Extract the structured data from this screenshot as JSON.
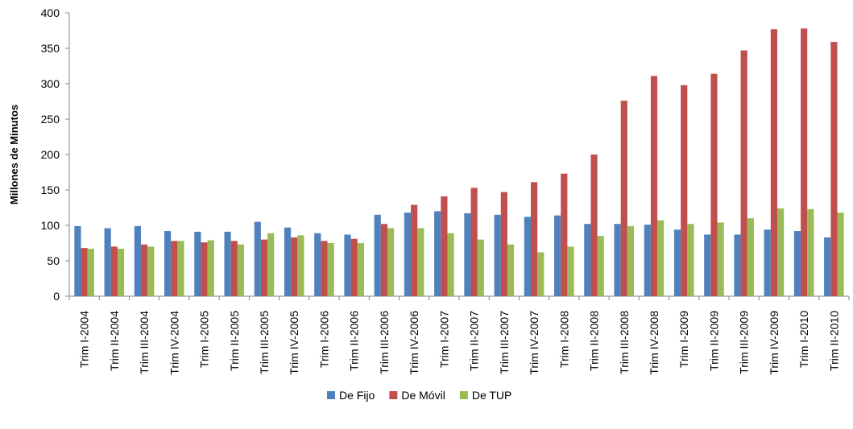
{
  "chart_data": {
    "type": "bar",
    "ylabel": "Millones de Minutos",
    "xlabel": "",
    "ylim": [
      0,
      400
    ],
    "yticks": [
      "0",
      "50",
      "100",
      "150",
      "200",
      "250",
      "300",
      "350",
      "400"
    ],
    "grid": false,
    "legend_position": "bottom",
    "categories": [
      "Trim I-2004",
      "Trim II-2004",
      "Trim III-2004",
      "Trim IV-2004",
      "Trim I-2005",
      "Trim II-2005",
      "Trim III-2005",
      "Trim IV-2005",
      "Trim I-2006",
      "Trim II-2006",
      "Trim III-2006",
      "Trim IV-2006",
      "Trim I-2007",
      "Trim II-2007",
      "Trim III-2007",
      "Trim IV-2007",
      "Trim I-2008",
      "Trim II-2008",
      "Trim III-2008",
      "Trim IV-2008",
      "Trim I-2009",
      "Trim II-2009",
      "Trim III-2009",
      "Trim IV-2009",
      "Trim I-2010",
      "Trim II-2010"
    ],
    "series": [
      {
        "name": "De Fijo",
        "color": "#4f81bd",
        "values": [
          99,
          96,
          99,
          92,
          91,
          91,
          105,
          97,
          89,
          87,
          115,
          118,
          120,
          117,
          115,
          112,
          114,
          102,
          102,
          101,
          94,
          87,
          87,
          94,
          92,
          83
        ]
      },
      {
        "name": "De Móvil",
        "color": "#c0504d",
        "values": [
          68,
          70,
          73,
          78,
          76,
          78,
          80,
          83,
          78,
          81,
          102,
          129,
          141,
          153,
          147,
          161,
          173,
          200,
          276,
          311,
          298,
          314,
          347,
          377,
          378,
          359
        ]
      },
      {
        "name": "De TUP",
        "color": "#9bbb59",
        "values": [
          67,
          67,
          70,
          78,
          79,
          73,
          89,
          86,
          75,
          75,
          96,
          96,
          89,
          80,
          73,
          62,
          70,
          85,
          99,
          107,
          102,
          104,
          110,
          124,
          123,
          118
        ]
      }
    ]
  }
}
